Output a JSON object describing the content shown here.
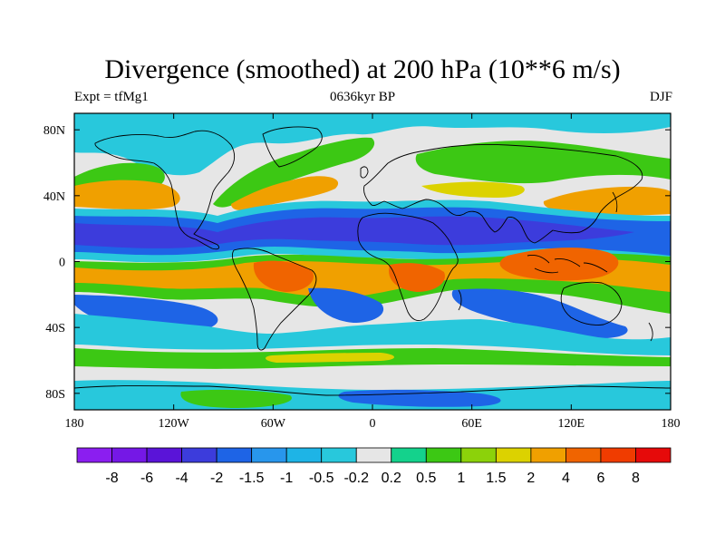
{
  "title": "Divergence (smoothed) at 200 hPa (10**6 m/s)",
  "left_label": "Expt = tfMg1",
  "center_label": "0636kyr BP",
  "right_label": "DJF",
  "lat_ticks": [
    {
      "value": 80,
      "label": "80N"
    },
    {
      "value": 40,
      "label": "40N"
    },
    {
      "value": 0,
      "label": "0"
    },
    {
      "value": -40,
      "label": "40S"
    },
    {
      "value": -80,
      "label": "80S"
    }
  ],
  "lon_ticks": [
    {
      "value": -180,
      "label": "180"
    },
    {
      "value": -120,
      "label": "120W"
    },
    {
      "value": -60,
      "label": "60W"
    },
    {
      "value": 0,
      "label": "0"
    },
    {
      "value": 60,
      "label": "60E"
    },
    {
      "value": 120,
      "label": "120E"
    },
    {
      "value": 180,
      "label": "180"
    }
  ],
  "colorbar": {
    "labels": [
      "-8",
      "-6",
      "-4",
      "-2",
      "-1.5",
      "-1",
      "-0.5",
      "-0.2",
      "0.2",
      "0.5",
      "1",
      "1.5",
      "2",
      "4",
      "6",
      "8"
    ],
    "colors": [
      "#8b1ef0",
      "#7518e6",
      "#5a14d8",
      "#3c3cdc",
      "#1e64e6",
      "#2896ec",
      "#1eb4e6",
      "#28c8dc",
      "#e6e6e6",
      "#14d28c",
      "#3cc814",
      "#8cd20a",
      "#dcd200",
      "#f0a000",
      "#f06400",
      "#f03c00",
      "#e60a0a"
    ]
  },
  "map": {
    "lon_range": [
      -180,
      180
    ],
    "lat_range": [
      -90,
      90
    ],
    "colors": {
      "neg_strong": "#3c3cdc",
      "neg_mid": "#1e64e6",
      "neg_weak": "#28c8dc",
      "neutral": "#e6e6e6",
      "pos_weak": "#3cc814",
      "pos_mid": "#dcd200",
      "pos_strong": "#f0a000",
      "pos_max": "#f06400",
      "coast": "#000000"
    }
  }
}
